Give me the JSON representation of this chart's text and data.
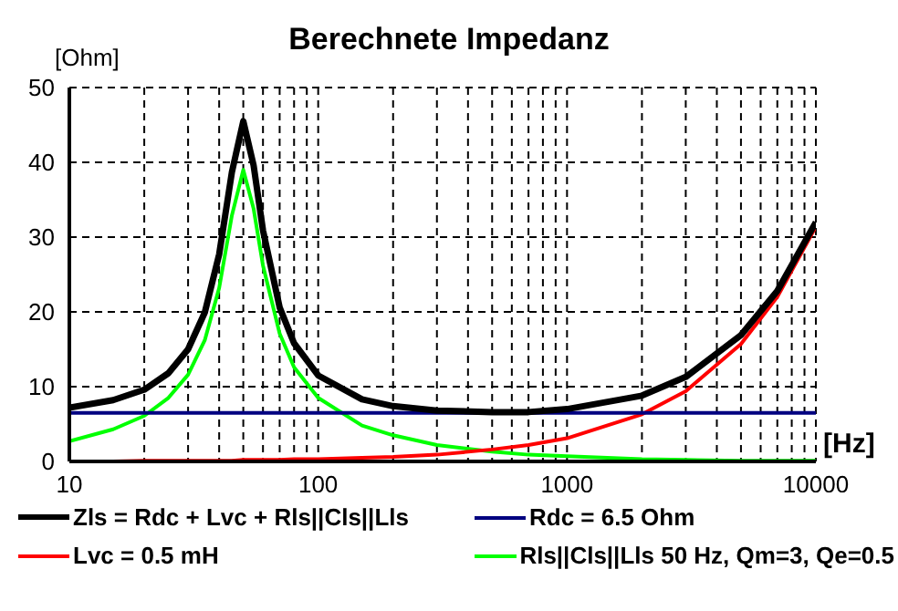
{
  "chart_data": {
    "type": "line",
    "title": "Berechnete Impedanz",
    "xlabel": "[Hz]",
    "ylabel": "[Ohm]",
    "x": [
      10,
      15,
      20,
      25,
      30,
      35,
      40,
      45,
      50,
      55,
      60,
      70,
      80,
      100,
      150,
      200,
      300,
      500,
      700,
      1000,
      2000,
      3000,
      5000,
      7000,
      10000
    ],
    "series": [
      {
        "name": "Zls = Rdc + Lvc + Rls||Cls||Lls",
        "color": "#000000",
        "values": [
          7.2,
          8.2,
          9.6,
          11.8,
          15,
          19.9,
          27.7,
          38.7,
          45.5,
          39.6,
          30.9,
          20.6,
          15.8,
          11.5,
          8.3,
          7.4,
          6.8,
          6.6,
          6.6,
          7,
          8.8,
          11.3,
          16.9,
          22.8,
          32
        ]
      },
      {
        "name": "Rdc = 6.5 Ohm",
        "color": "#000080",
        "values": [
          6.5,
          6.5,
          6.5,
          6.5,
          6.5,
          6.5,
          6.5,
          6.5,
          6.5,
          6.5,
          6.5,
          6.5,
          6.5,
          6.5,
          6.5,
          6.5,
          6.5,
          6.5,
          6.5,
          6.5,
          6.5,
          6.5,
          6.5,
          6.5,
          6.5
        ]
      },
      {
        "name": "Lvc = 0.5 mH",
        "color": "#ff0000",
        "values": [
          0,
          0,
          0.1,
          0.1,
          0.1,
          0.1,
          0.1,
          0.1,
          0.2,
          0.2,
          0.2,
          0.2,
          0.3,
          0.3,
          0.5,
          0.6,
          0.9,
          1.6,
          2.2,
          3.1,
          6.3,
          9.4,
          15.7,
          22,
          31.4
        ]
      },
      {
        "name": "Rls||Cls||Lls 50 Hz, Qm=3, Qe=0.5",
        "color": "#00ff00",
        "values": [
          2.7,
          4.3,
          6.1,
          8.5,
          11.6,
          16.2,
          23.2,
          32.9,
          39,
          33.8,
          26.2,
          17.1,
          12.6,
          8.5,
          4.8,
          3.5,
          2.2,
          1.3,
          0.9,
          0.7,
          0.3,
          0.2,
          0.1,
          0.1,
          0.1
        ]
      }
    ],
    "log": "x",
    "xlim": [
      10,
      10000
    ],
    "xticks": [
      10,
      {
        "value": 20,
        "label": null
      },
      {
        "value": 30,
        "label": null
      },
      {
        "value": 40,
        "label": null
      },
      {
        "value": 50,
        "label": null
      },
      {
        "value": 60,
        "label": null
      },
      {
        "value": 70,
        "label": null
      },
      {
        "value": 80,
        "label": null
      },
      {
        "value": 90,
        "label": null
      },
      100,
      {
        "value": 200,
        "label": null
      },
      {
        "value": 300,
        "label": null
      },
      {
        "value": 400,
        "label": null
      },
      {
        "value": 500,
        "label": null
      },
      {
        "value": 600,
        "label": null
      },
      {
        "value": 700,
        "label": null
      },
      {
        "value": 800,
        "label": null
      },
      {
        "value": 900,
        "label": null
      },
      1000,
      {
        "value": 2000,
        "label": null
      },
      {
        "value": 3000,
        "label": null
      },
      {
        "value": 4000,
        "label": null
      },
      {
        "value": 5000,
        "label": null
      },
      {
        "value": 6000,
        "label": null
      },
      {
        "value": 7000,
        "label": null
      },
      {
        "value": 8000,
        "label": null
      },
      {
        "value": 9000,
        "label": null
      },
      10000
    ],
    "ylim": [
      0,
      50
    ],
    "yticks": [
      0,
      10,
      20,
      30,
      40,
      50
    ],
    "grid": true,
    "legend": "bottom",
    "marker": "none",
    "line_style": "solid"
  }
}
